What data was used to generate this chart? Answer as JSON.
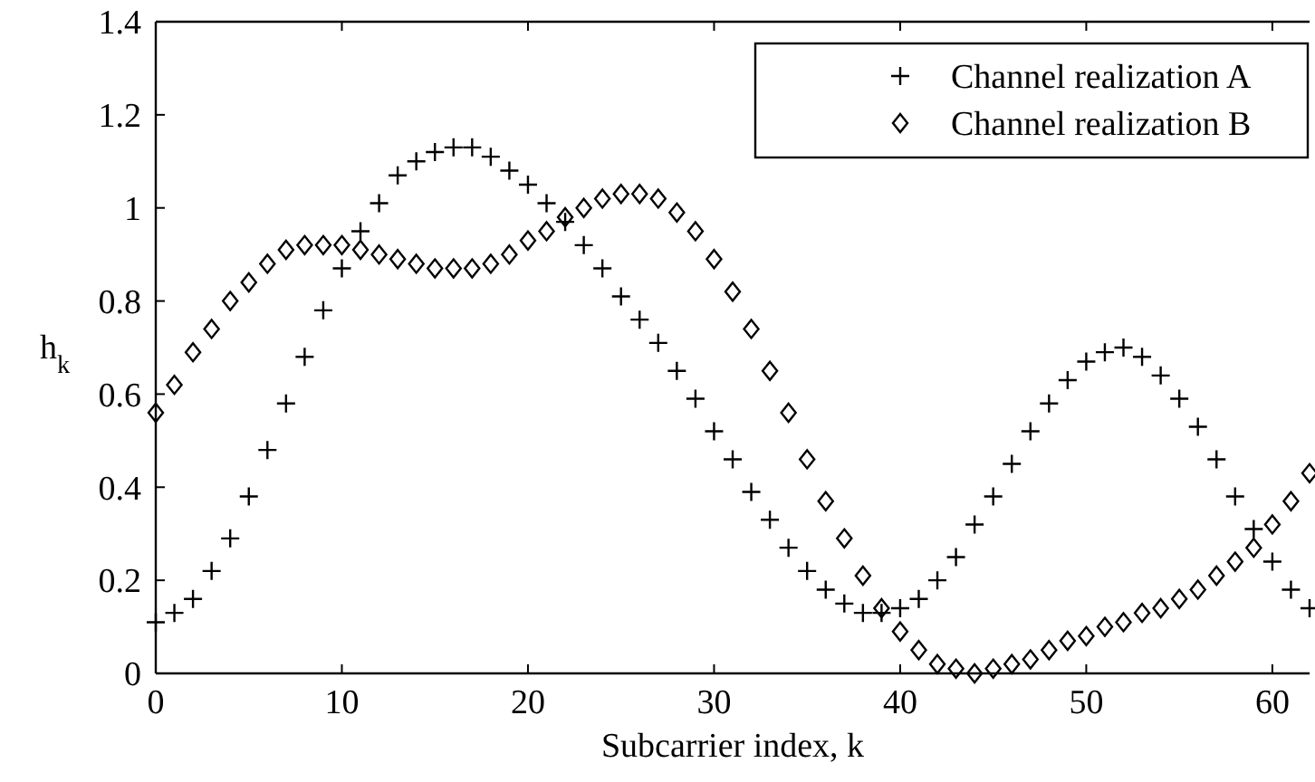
{
  "chart_data": {
    "type": "scatter",
    "xlabel": "Subcarrier index, k",
    "ylabel": "h$_{k}$",
    "xlim": [
      0,
      62
    ],
    "ylim": [
      0,
      1.4
    ],
    "xticks": [
      0,
      10,
      20,
      30,
      40,
      50,
      60
    ],
    "yticks": [
      0,
      0.2,
      0.4,
      0.6,
      0.8,
      1,
      1.2,
      1.4
    ],
    "legend": "top right",
    "grid": false,
    "x": [
      0,
      1,
      2,
      3,
      4,
      5,
      6,
      7,
      8,
      9,
      10,
      11,
      12,
      13,
      14,
      15,
      16,
      17,
      18,
      19,
      20,
      21,
      22,
      23,
      24,
      25,
      26,
      27,
      28,
      29,
      30,
      31,
      32,
      33,
      34,
      35,
      36,
      37,
      38,
      39,
      40,
      41,
      42,
      43,
      44,
      45,
      46,
      47,
      48,
      49,
      50,
      51,
      52,
      53,
      54,
      55,
      56,
      57,
      58,
      59,
      60,
      61,
      62
    ],
    "series": [
      {
        "name": "Channel realization A",
        "color": "#000000",
        "marker": "cross",
        "values": [
          0.11,
          0.13,
          0.16,
          0.22,
          0.29,
          0.38,
          0.48,
          0.58,
          0.68,
          0.78,
          0.87,
          0.95,
          1.01,
          1.07,
          1.1,
          1.12,
          1.13,
          1.13,
          1.11,
          1.08,
          1.05,
          1.01,
          0.97,
          0.92,
          0.87,
          0.81,
          0.76,
          0.71,
          0.65,
          0.59,
          0.52,
          0.46,
          0.39,
          0.33,
          0.27,
          0.22,
          0.18,
          0.15,
          0.13,
          0.13,
          0.14,
          0.16,
          0.2,
          0.25,
          0.32,
          0.38,
          0.45,
          0.52,
          0.58,
          0.63,
          0.67,
          0.69,
          0.7,
          0.68,
          0.64,
          0.59,
          0.53,
          0.46,
          0.38,
          0.31,
          0.24,
          0.18,
          0.14
        ]
      },
      {
        "name": "Channel realization B",
        "color": "#000000",
        "marker": "diamond",
        "values": [
          0.56,
          0.62,
          0.69,
          0.74,
          0.8,
          0.84,
          0.88,
          0.91,
          0.92,
          0.92,
          0.92,
          0.91,
          0.9,
          0.89,
          0.88,
          0.87,
          0.87,
          0.87,
          0.88,
          0.9,
          0.93,
          0.95,
          0.98,
          1,
          1.02,
          1.03,
          1.03,
          1.02,
          0.99,
          0.95,
          0.89,
          0.82,
          0.74,
          0.65,
          0.56,
          0.46,
          0.37,
          0.29,
          0.21,
          0.14,
          0.09,
          0.05,
          0.02,
          0.01,
          0,
          0.01,
          0.02,
          0.03,
          0.05,
          0.07,
          0.08,
          0.1,
          0.11,
          0.13,
          0.14,
          0.16,
          0.18,
          0.21,
          0.24,
          0.27,
          0.32,
          0.37,
          0.43
        ]
      }
    ]
  }
}
